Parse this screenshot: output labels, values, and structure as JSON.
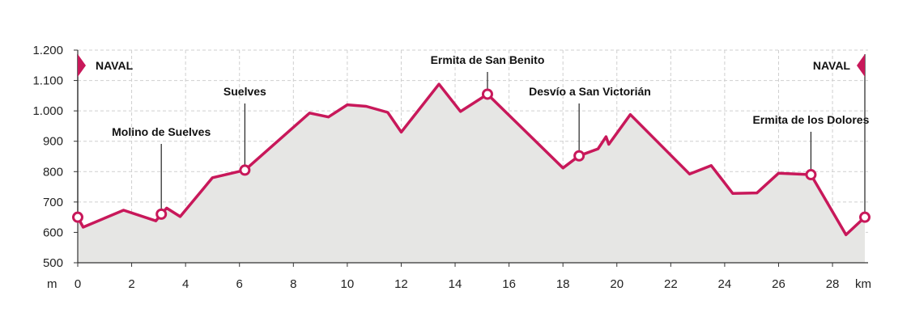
{
  "chart_data": {
    "type": "area",
    "title": "",
    "xlabel": "km",
    "ylabel": "m",
    "xlim": [
      0,
      29.2
    ],
    "ylim": [
      500,
      1200
    ],
    "grid": true,
    "x_ticks": [
      0,
      2,
      4,
      6,
      8,
      10,
      12,
      14,
      16,
      18,
      20,
      22,
      24,
      26,
      28
    ],
    "x_tick_labels": [
      "0",
      "2",
      "4",
      "6",
      "8",
      "10",
      "12",
      "14",
      "16",
      "18",
      "20",
      "22",
      "24",
      "26",
      "28"
    ],
    "y_ticks": [
      500,
      600,
      700,
      800,
      900,
      1000,
      1100,
      1200
    ],
    "y_tick_labels": [
      "500",
      "600",
      "700",
      "800",
      "900",
      "1.000",
      "1.100",
      "1.200"
    ],
    "line_color": "#c8185a",
    "fill_color": "#e6e6e4",
    "profile": {
      "x": [
        0,
        0.2,
        1.7,
        2.9,
        3.1,
        3.3,
        3.8,
        5.0,
        6.2,
        8.6,
        9.3,
        10.0,
        10.7,
        11.5,
        12.0,
        13.4,
        14.2,
        15.2,
        18.0,
        18.6,
        19.3,
        19.6,
        19.7,
        20.5,
        22.7,
        23.5,
        24.3,
        25.2,
        26.0,
        27.2,
        28.5,
        29.2
      ],
      "y": [
        650,
        617,
        673,
        638,
        660,
        680,
        652,
        780,
        805,
        993,
        980,
        1020,
        1015,
        995,
        930,
        1088,
        998,
        1055,
        812,
        852,
        875,
        915,
        890,
        988,
        792,
        820,
        728,
        730,
        795,
        790,
        592,
        650
      ]
    },
    "waypoints": [
      {
        "name": "NAVAL",
        "x": 0,
        "y": 650,
        "kind": "flag"
      },
      {
        "name": "Molino de Suelves",
        "x": 3.1,
        "y": 660
      },
      {
        "name": "Suelves",
        "x": 6.2,
        "y": 805
      },
      {
        "name": "Ermita de San Benito",
        "x": 15.2,
        "y": 1055
      },
      {
        "name": "Desvío a San Victorián",
        "x": 18.6,
        "y": 852
      },
      {
        "name": "Ermita de los Dolores",
        "x": 27.2,
        "y": 790
      },
      {
        "name": "NAVAL",
        "x": 29.2,
        "y": 650,
        "kind": "flag"
      }
    ]
  }
}
